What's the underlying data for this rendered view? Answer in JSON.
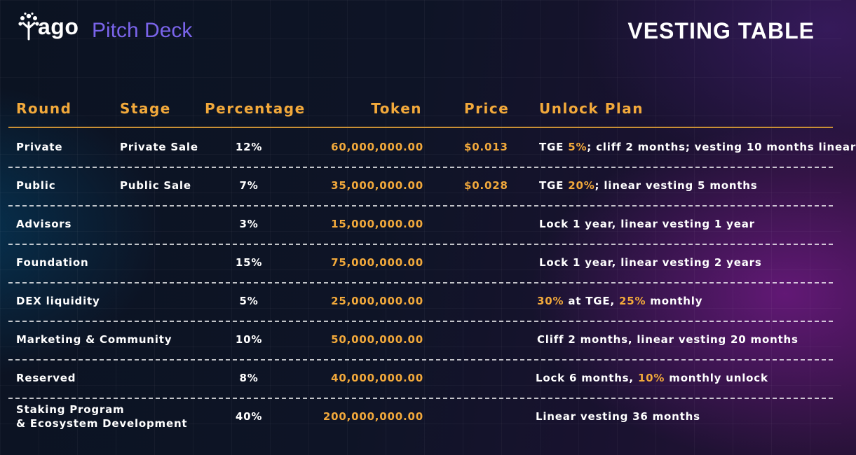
{
  "header": {
    "logo_text": "ago",
    "logo_icon": "tree-icon",
    "deck_label": "Pitch Deck",
    "title": "VESTING TABLE"
  },
  "colors": {
    "accent": "#f2a93b",
    "deck_purple": "#7a64ea"
  },
  "table": {
    "columns": [
      "Round",
      "Stage",
      "Percentage",
      "Token",
      "Price",
      "Unlock Plan"
    ],
    "rows": [
      {
        "round": "Private",
        "round2": "",
        "stage": "Private Sale",
        "percentage": "12%",
        "token": "60,000,000.00",
        "price": "$0.013",
        "plan": [
          {
            "t": "TGE "
          },
          {
            "t": "5%",
            "hl": true
          },
          {
            "t": "; cliff 2 months; vesting 10 months linear"
          }
        ]
      },
      {
        "round": "Public",
        "round2": "",
        "stage": "Public Sale",
        "percentage": "7%",
        "token": "35,000,000.00",
        "price": "$0.028",
        "plan": [
          {
            "t": "TGE "
          },
          {
            "t": "20%",
            "hl": true
          },
          {
            "t": "; linear vesting 5 months"
          }
        ]
      },
      {
        "round": "Advisors",
        "round2": "",
        "stage": "",
        "percentage": "3%",
        "token": "15,000,000.00",
        "price": "",
        "plan": [
          {
            "t": "Lock 1 year, linear vesting 1 year"
          }
        ]
      },
      {
        "round": "Foundation",
        "round2": "",
        "stage": "",
        "percentage": "15%",
        "token": "75,000,000.00",
        "price": "",
        "plan": [
          {
            "t": "Lock 1 year, linear vesting 2 years"
          }
        ]
      },
      {
        "round": "DEX liquidity",
        "round2": "",
        "stage": "",
        "percentage": "5%",
        "token": "25,000,000.00",
        "price": "",
        "plan": [
          {
            "t": "30%",
            "hl": true
          },
          {
            "t": " at TGE, "
          },
          {
            "t": "25%",
            "hl": true
          },
          {
            "t": " monthly"
          }
        ]
      },
      {
        "round": "Marketing & Community",
        "round2": "",
        "stage": "",
        "percentage": "10%",
        "token": "50,000,000.00",
        "price": "",
        "plan": [
          {
            "t": "Cliff 2 months, linear vesting 20 months"
          }
        ]
      },
      {
        "round": "Reserved",
        "round2": "",
        "stage": "",
        "percentage": "8%",
        "token": "40,000,000.00",
        "price": "",
        "plan": [
          {
            "t": "Lock 6 months, "
          },
          {
            "t": "10%",
            "hl": true
          },
          {
            "t": " monthly unlock"
          }
        ]
      },
      {
        "round": "Staking Program",
        "round2": "& Ecosystem Development",
        "stage": "",
        "percentage": "40%",
        "token": "200,000,000.00",
        "price": "",
        "plan": [
          {
            "t": "Linear vesting 36 months"
          }
        ]
      }
    ]
  }
}
